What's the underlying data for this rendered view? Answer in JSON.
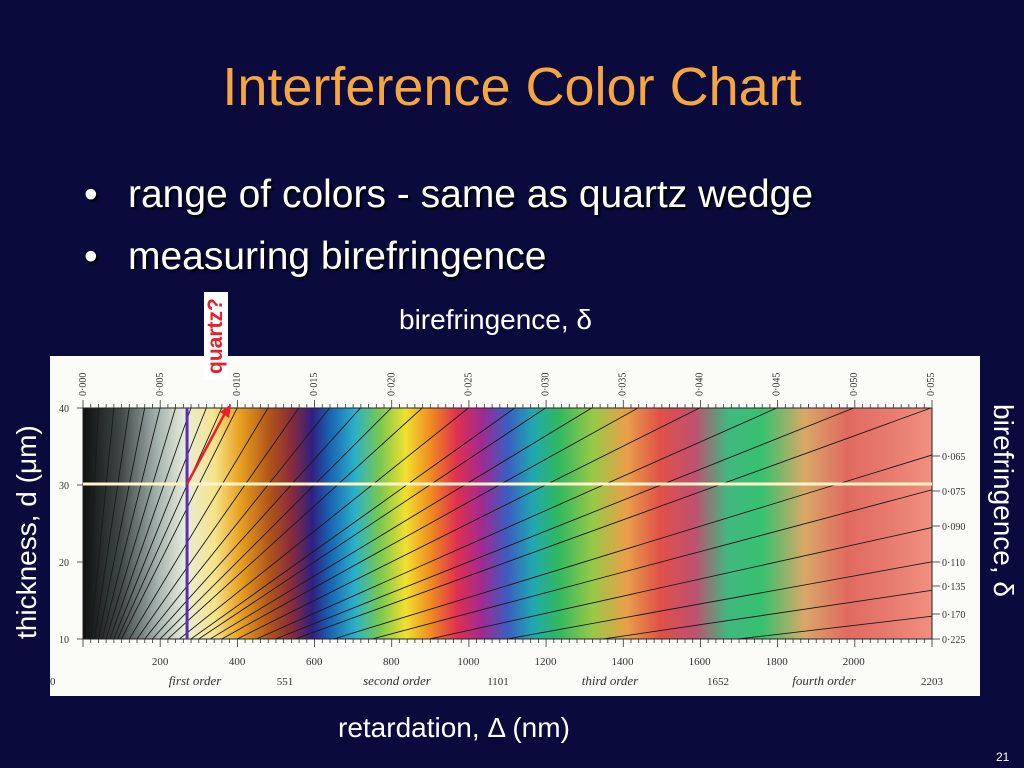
{
  "slide": {
    "title": "Interference Color Chart",
    "bullets": [
      {
        "marker": "•",
        "text": "range of colors - same as quartz wedge"
      },
      {
        "marker": "•",
        "text": "measuring birefringence"
      }
    ],
    "birefringence_top_label": "birefringence, δ",
    "quartz_label": "quartz?",
    "y_axis_left_label": "thickness, d (μm)",
    "y_axis_right_label": "birefringence, δ",
    "x_axis_label": "retardation, Δ (nm)",
    "slide_number": "21"
  },
  "chart": {
    "top_ticks": [
      "0·000",
      "0·005",
      "0·010",
      "0·015",
      "0·020",
      "0·025",
      "0·030",
      "0·035",
      "0·040",
      "0·045",
      "0·050",
      "0·055"
    ],
    "right_ticks": [
      "0·065",
      "0·075",
      "0·090",
      "0·110",
      "0·135",
      "0·170",
      "0·225"
    ],
    "left_ticks": [
      "40",
      "30",
      "20",
      "10"
    ],
    "bottom_ticks": [
      "200",
      "400",
      "600",
      "800",
      "1000",
      "1200",
      "1400",
      "1600",
      "1800",
      "2000"
    ],
    "order_labels": [
      "0",
      "first order",
      "551",
      "second order",
      "1101",
      "third order",
      "1652",
      "fourth order",
      "2203"
    ],
    "quartz_thickness_um": 30,
    "quartz_retardation_nm": 270,
    "highlight_line_color": "#fff6c8",
    "quartz_line_color": "#5a2fb5",
    "arrow_color": "#e8202a"
  }
}
